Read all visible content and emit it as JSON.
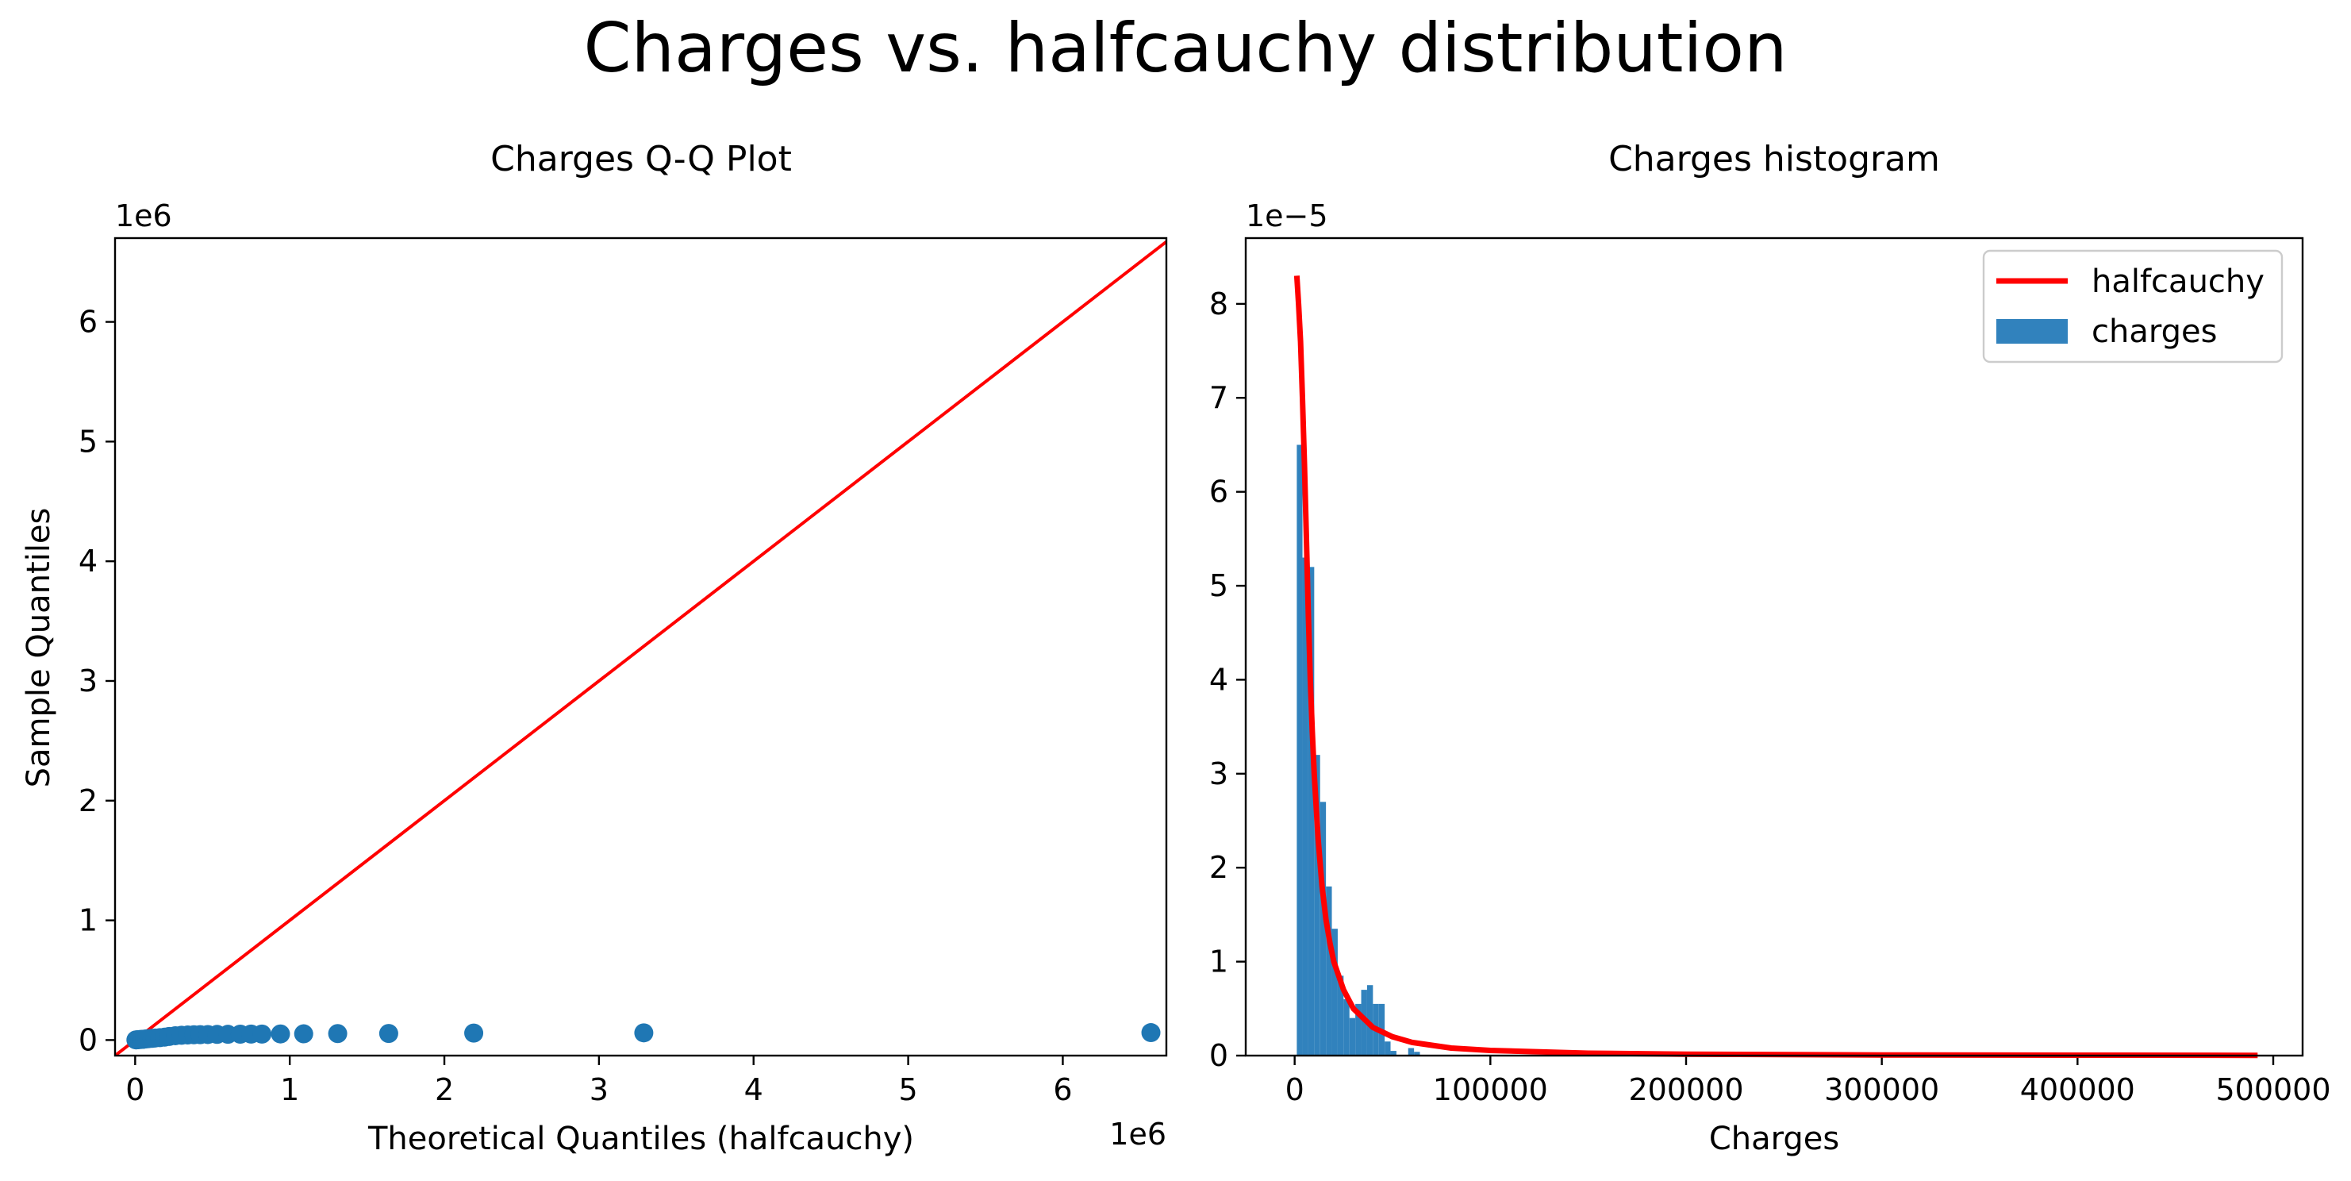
{
  "figure": {
    "suptitle": "Charges vs. halfcauchy distribution"
  },
  "chart_data": [
    {
      "type": "scatter",
      "title": "Charges Q-Q Plot",
      "xlabel": "Theoretical Quantiles (halfcauchy)",
      "ylabel": "Sample Quantiles",
      "x_offset_label": "1e6",
      "y_offset_label": "1e6",
      "xlim": [
        -0.13,
        6.67
      ],
      "ylim": [
        -0.13,
        6.7
      ],
      "x_ticks": [
        0,
        1,
        2,
        3,
        4,
        5,
        6
      ],
      "y_ticks": [
        0,
        1,
        2,
        3,
        4,
        5,
        6
      ],
      "grid": false,
      "reference_line": {
        "x": [
          -0.13,
          6.7
        ],
        "y": [
          -0.13,
          6.7
        ],
        "color": "#ff0000"
      },
      "marker_color": "#1f77b4",
      "points": [
        {
          "x": 0.005,
          "y": 0.0012
        },
        {
          "x": 0.012,
          "y": 0.002
        },
        {
          "x": 0.02,
          "y": 0.003
        },
        {
          "x": 0.03,
          "y": 0.004
        },
        {
          "x": 0.04,
          "y": 0.005
        },
        {
          "x": 0.05,
          "y": 0.006
        },
        {
          "x": 0.06,
          "y": 0.008
        },
        {
          "x": 0.075,
          "y": 0.01
        },
        {
          "x": 0.09,
          "y": 0.012
        },
        {
          "x": 0.11,
          "y": 0.014
        },
        {
          "x": 0.13,
          "y": 0.017
        },
        {
          "x": 0.16,
          "y": 0.02
        },
        {
          "x": 0.19,
          "y": 0.024
        },
        {
          "x": 0.22,
          "y": 0.03
        },
        {
          "x": 0.26,
          "y": 0.036
        },
        {
          "x": 0.3,
          "y": 0.04
        },
        {
          "x": 0.34,
          "y": 0.042
        },
        {
          "x": 0.38,
          "y": 0.044
        },
        {
          "x": 0.42,
          "y": 0.045
        },
        {
          "x": 0.47,
          "y": 0.046
        },
        {
          "x": 0.53,
          "y": 0.047
        },
        {
          "x": 0.6,
          "y": 0.048
        },
        {
          "x": 0.68,
          "y": 0.049
        },
        {
          "x": 0.75,
          "y": 0.05
        },
        {
          "x": 0.82,
          "y": 0.05
        },
        {
          "x": 0.94,
          "y": 0.051
        },
        {
          "x": 1.09,
          "y": 0.052
        },
        {
          "x": 1.31,
          "y": 0.054
        },
        {
          "x": 1.64,
          "y": 0.055
        },
        {
          "x": 2.19,
          "y": 0.058
        },
        {
          "x": 3.29,
          "y": 0.06
        },
        {
          "x": 6.57,
          "y": 0.062
        }
      ]
    },
    {
      "type": "bar",
      "title": "Charges histogram",
      "xlabel": "Charges",
      "ylabel": "",
      "y_offset_label": "1e−5",
      "xlim": [
        -25000,
        515000
      ],
      "ylim": [
        0,
        8.7
      ],
      "x_ticks": [
        0,
        100000,
        200000,
        300000,
        400000,
        500000
      ],
      "x_tick_labels": [
        "0",
        "100000",
        "200000",
        "300000",
        "400000",
        "500000"
      ],
      "y_ticks": [
        0,
        1,
        2,
        3,
        4,
        5,
        6,
        7,
        8
      ],
      "grid": false,
      "legend": {
        "position": "top-right",
        "entries": [
          "halfcauchy",
          "charges"
        ]
      },
      "bar_color": "#3182bd",
      "bars": [
        {
          "x0": 1100,
          "x1": 4000,
          "value": 6.5
        },
        {
          "x0": 4000,
          "x1": 7000,
          "value": 5.3
        },
        {
          "x0": 7000,
          "x1": 10000,
          "value": 5.2
        },
        {
          "x0": 10000,
          "x1": 13000,
          "value": 3.2
        },
        {
          "x0": 13000,
          "x1": 16000,
          "value": 2.7
        },
        {
          "x0": 16000,
          "x1": 19000,
          "value": 1.8
        },
        {
          "x0": 19000,
          "x1": 22000,
          "value": 1.35
        },
        {
          "x0": 22000,
          "x1": 25000,
          "value": 0.85
        },
        {
          "x0": 25000,
          "x1": 28000,
          "value": 0.6
        },
        {
          "x0": 28000,
          "x1": 31000,
          "value": 0.4
        },
        {
          "x0": 31000,
          "x1": 34000,
          "value": 0.55
        },
        {
          "x0": 34000,
          "x1": 37000,
          "value": 0.7
        },
        {
          "x0": 37000,
          "x1": 40000,
          "value": 0.75
        },
        {
          "x0": 40000,
          "x1": 43000,
          "value": 0.55
        },
        {
          "x0": 43000,
          "x1": 46000,
          "value": 0.55
        },
        {
          "x0": 46000,
          "x1": 49000,
          "value": 0.15
        },
        {
          "x0": 49000,
          "x1": 52000,
          "value": 0.05
        },
        {
          "x0": 58000,
          "x1": 61000,
          "value": 0.08
        },
        {
          "x0": 61000,
          "x1": 64000,
          "value": 0.04
        }
      ],
      "curve": {
        "name": "halfcauchy",
        "color": "#ff0000",
        "x": [
          1100,
          2000,
          3000,
          4000,
          5000,
          6000,
          7000,
          8000,
          9000,
          10000,
          12000,
          14000,
          16000,
          18000,
          20000,
          25000,
          30000,
          40000,
          50000,
          60000,
          80000,
          100000,
          150000,
          200000,
          300000,
          400000,
          492000
        ],
        "y": [
          8.3,
          8.0,
          7.6,
          7.0,
          6.3,
          5.5,
          4.7,
          4.0,
          3.45,
          3.0,
          2.3,
          1.8,
          1.45,
          1.2,
          1.0,
          0.7,
          0.5,
          0.3,
          0.2,
          0.14,
          0.08,
          0.055,
          0.025,
          0.015,
          0.007,
          0.004,
          0.0025
        ]
      }
    }
  ]
}
